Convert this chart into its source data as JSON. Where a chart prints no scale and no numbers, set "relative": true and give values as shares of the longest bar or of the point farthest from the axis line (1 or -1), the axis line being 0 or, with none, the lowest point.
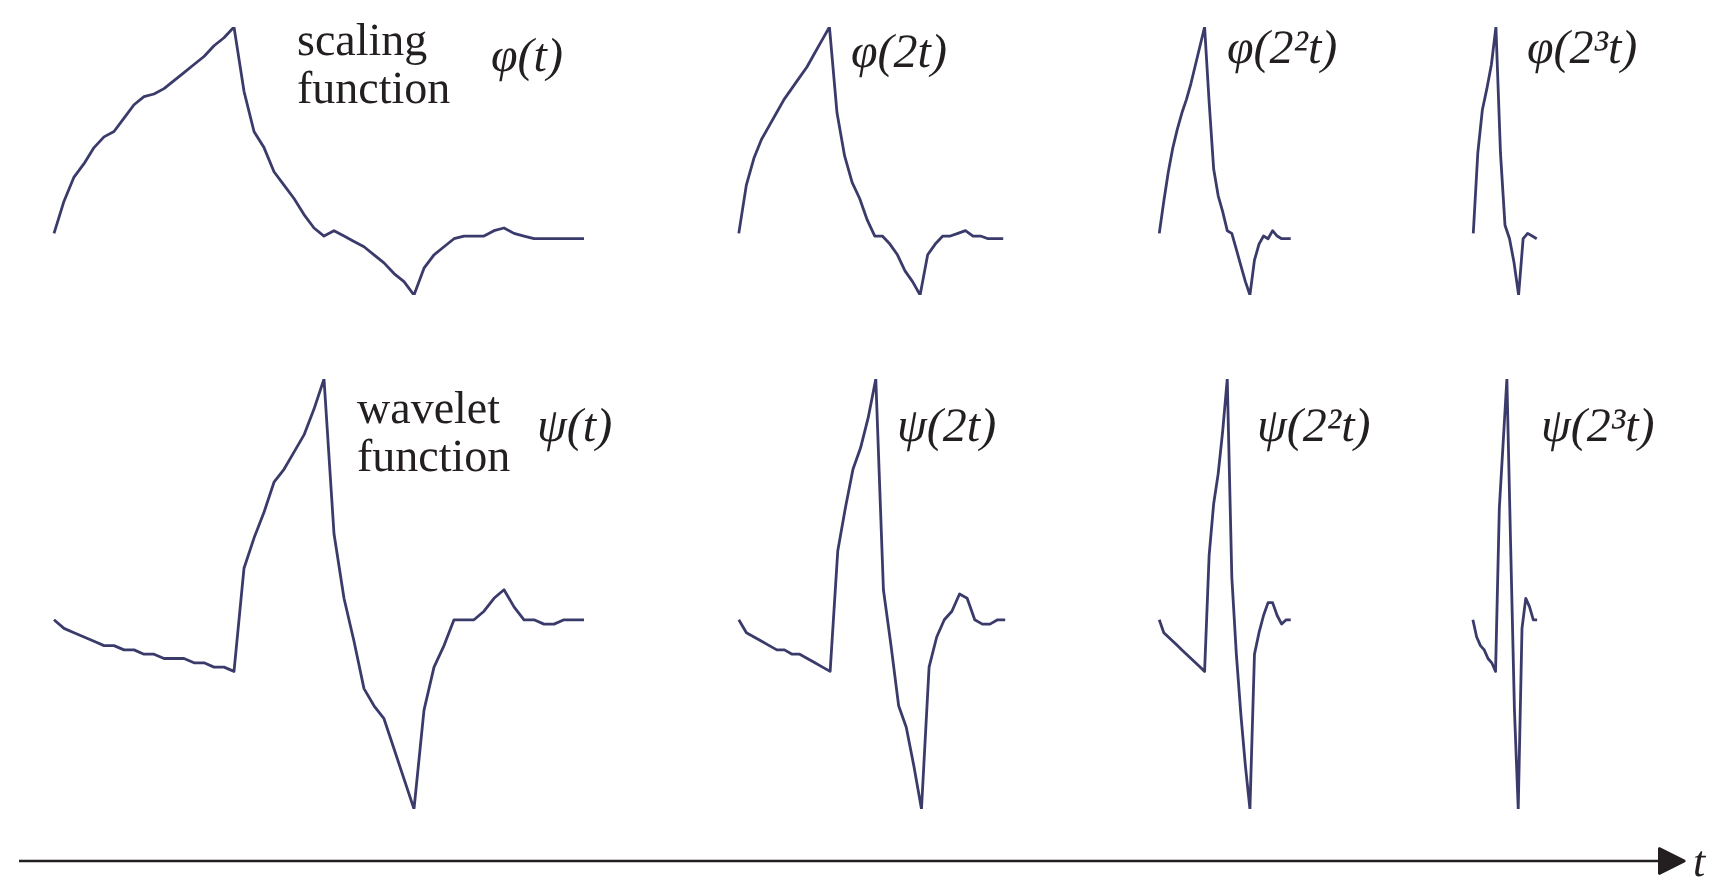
{
  "chart_data": [
    {
      "type": "line",
      "title": "φ(t)",
      "annotations": [
        "scaling function"
      ],
      "relative": true,
      "tick_labels": false,
      "color": "#3b3b6b",
      "categories": [
        null,
        null,
        null,
        null,
        null,
        null,
        null,
        null,
        null,
        null,
        null,
        null,
        null,
        null,
        null,
        null,
        null,
        null,
        null,
        null,
        null,
        null,
        null,
        null,
        null,
        null,
        null,
        null,
        null,
        null,
        null,
        null,
        null,
        null,
        null,
        null,
        null,
        null,
        null,
        null,
        null,
        null,
        null,
        null,
        null,
        null,
        null,
        null,
        null,
        null,
        null,
        null,
        null,
        null
      ],
      "values": [
        0.23,
        0.35,
        0.44,
        0.49,
        0.55,
        0.59,
        0.61,
        0.66,
        0.71,
        0.74,
        0.75,
        0.77,
        0.8,
        0.83,
        0.86,
        0.89,
        0.93,
        0.96,
        1,
        0.76,
        0.61,
        0.55,
        0.46,
        0.41,
        0.36,
        0.3,
        0.25,
        0.22,
        0.24,
        0.22,
        0.2,
        0.18,
        0.15,
        0.12,
        0.08,
        0.05,
        0,
        0.1,
        0.15,
        0.18,
        0.21,
        0.22,
        0.22,
        0.22,
        0.24,
        0.25,
        0.23,
        0.22,
        0.21,
        0.21,
        0.21,
        0.21,
        0.21,
        0.21
      ]
    },
    {
      "type": "line",
      "title": "φ(2t)",
      "relative": true,
      "tick_labels": false,
      "color": "#3b3b6b",
      "categories": [
        null,
        null,
        null,
        null,
        null,
        null,
        null,
        null,
        null,
        null,
        null,
        null,
        null,
        null,
        null,
        null,
        null,
        null,
        null,
        null,
        null,
        null,
        null,
        null,
        null,
        null,
        null,
        null,
        null,
        null,
        null,
        null,
        null,
        null,
        null,
        null
      ],
      "values": [
        0.23,
        0.41,
        0.51,
        0.58,
        0.63,
        0.68,
        0.73,
        0.77,
        0.81,
        0.85,
        0.9,
        0.95,
        1,
        0.68,
        0.52,
        0.42,
        0.36,
        0.28,
        0.22,
        0.22,
        0.19,
        0.15,
        0.09,
        0.05,
        0,
        0.15,
        0.19,
        0.22,
        0.22,
        0.23,
        0.24,
        0.22,
        0.22,
        0.21,
        0.21,
        0.21
      ]
    },
    {
      "type": "line",
      "title": "φ(2²t)",
      "relative": true,
      "tick_labels": false,
      "color": "#3b3b6b",
      "categories": [
        null,
        null,
        null,
        null,
        null,
        null,
        null,
        null,
        null,
        null,
        null,
        null,
        null,
        null,
        null,
        null,
        null,
        null,
        null,
        null,
        null,
        null,
        null,
        null,
        null,
        null,
        null,
        null,
        null,
        null
      ],
      "values": [
        0.23,
        0.35,
        0.46,
        0.55,
        0.62,
        0.68,
        0.73,
        0.79,
        0.86,
        0.93,
        1,
        0.72,
        0.47,
        0.37,
        0.31,
        0.24,
        0.23,
        0.17,
        0.11,
        0.05,
        0,
        0.13,
        0.19,
        0.22,
        0.21,
        0.24,
        0.22,
        0.21,
        0.21,
        0.21
      ]
    },
    {
      "type": "line",
      "title": "φ(2³t)",
      "relative": true,
      "tick_labels": false,
      "color": "#3b3b6b",
      "categories": [
        null,
        null,
        null,
        null,
        null,
        null,
        null,
        null,
        null,
        null,
        null,
        null,
        null,
        null,
        null
      ],
      "values": [
        0.23,
        0.53,
        0.69,
        0.77,
        0.86,
        1,
        0.53,
        0.26,
        0.21,
        0.12,
        0,
        0.21,
        0.23,
        0.22,
        0.21
      ]
    },
    {
      "type": "line",
      "title": "ψ(t)",
      "annotations": [
        "wavelet function"
      ],
      "relative": true,
      "tick_labels": false,
      "color": "#3b3b6b",
      "categories": [
        null,
        null,
        null,
        null,
        null,
        null,
        null,
        null,
        null,
        null,
        null,
        null,
        null,
        null,
        null,
        null,
        null,
        null,
        null,
        null,
        null,
        null,
        null,
        null,
        null,
        null,
        null,
        null,
        null,
        null,
        null,
        null,
        null,
        null,
        null,
        null,
        null,
        null,
        null,
        null,
        null,
        null,
        null,
        null,
        null,
        null,
        null,
        null,
        null,
        null,
        null,
        null,
        null,
        null
      ],
      "values": [
        0.44,
        0.42,
        0.41,
        0.4,
        0.39,
        0.38,
        0.38,
        0.37,
        0.37,
        0.36,
        0.36,
        0.35,
        0.35,
        0.35,
        0.34,
        0.34,
        0.33,
        0.33,
        0.32,
        0.56,
        0.63,
        0.69,
        0.76,
        0.79,
        0.83,
        0.87,
        0.93,
        1,
        0.64,
        0.49,
        0.39,
        0.28,
        0.24,
        0.21,
        0.14,
        0.07,
        0,
        0.23,
        0.33,
        0.38,
        0.44,
        0.44,
        0.44,
        0.46,
        0.49,
        0.51,
        0.47,
        0.44,
        0.44,
        0.43,
        0.43,
        0.44,
        0.44,
        0.44
      ]
    },
    {
      "type": "line",
      "title": "ψ(2t)",
      "relative": true,
      "tick_labels": false,
      "color": "#3b3b6b",
      "categories": [
        null,
        null,
        null,
        null,
        null,
        null,
        null,
        null,
        null,
        null,
        null,
        null,
        null,
        null,
        null,
        null,
        null,
        null,
        null,
        null,
        null,
        null,
        null,
        null,
        null,
        null,
        null,
        null,
        null,
        null,
        null,
        null,
        null,
        null,
        null,
        null
      ],
      "values": [
        0.44,
        0.41,
        0.4,
        0.39,
        0.38,
        0.37,
        0.37,
        0.36,
        0.36,
        0.35,
        0.34,
        0.33,
        0.32,
        0.6,
        0.7,
        0.79,
        0.84,
        0.91,
        1,
        0.51,
        0.38,
        0.24,
        0.19,
        0.1,
        0,
        0.33,
        0.4,
        0.44,
        0.46,
        0.5,
        0.49,
        0.44,
        0.43,
        0.43,
        0.44,
        0.44
      ]
    },
    {
      "type": "line",
      "title": "ψ(2²t)",
      "relative": true,
      "tick_labels": false,
      "color": "#3b3b6b",
      "categories": [
        null,
        null,
        null,
        null,
        null,
        null,
        null,
        null,
        null,
        null,
        null,
        null,
        null,
        null,
        null,
        null,
        null,
        null,
        null,
        null,
        null,
        null,
        null,
        null,
        null,
        null,
        null,
        null,
        null,
        null
      ],
      "values": [
        0.44,
        0.41,
        0.4,
        0.39,
        0.38,
        0.37,
        0.36,
        0.35,
        0.34,
        0.33,
        0.32,
        0.59,
        0.71,
        0.78,
        0.88,
        1,
        0.54,
        0.36,
        0.22,
        0.1,
        0,
        0.36,
        0.41,
        0.45,
        0.48,
        0.48,
        0.45,
        0.43,
        0.44,
        0.44
      ]
    },
    {
      "type": "line",
      "title": "ψ(2³t)",
      "relative": true,
      "tick_labels": false,
      "color": "#3b3b6b",
      "categories": [
        null,
        null,
        null,
        null,
        null,
        null,
        null,
        null,
        null,
        null,
        null,
        null,
        null,
        null,
        null,
        null,
        null,
        null
      ],
      "values": [
        0.44,
        0.4,
        0.38,
        0.37,
        0.35,
        0.34,
        0.32,
        0.7,
        0.85,
        1,
        0.61,
        0.23,
        0,
        0.42,
        0.49,
        0.47,
        0.44,
        0.44
      ]
    },
    {
      "type": "other",
      "xlabel": "t"
    }
  ]
}
